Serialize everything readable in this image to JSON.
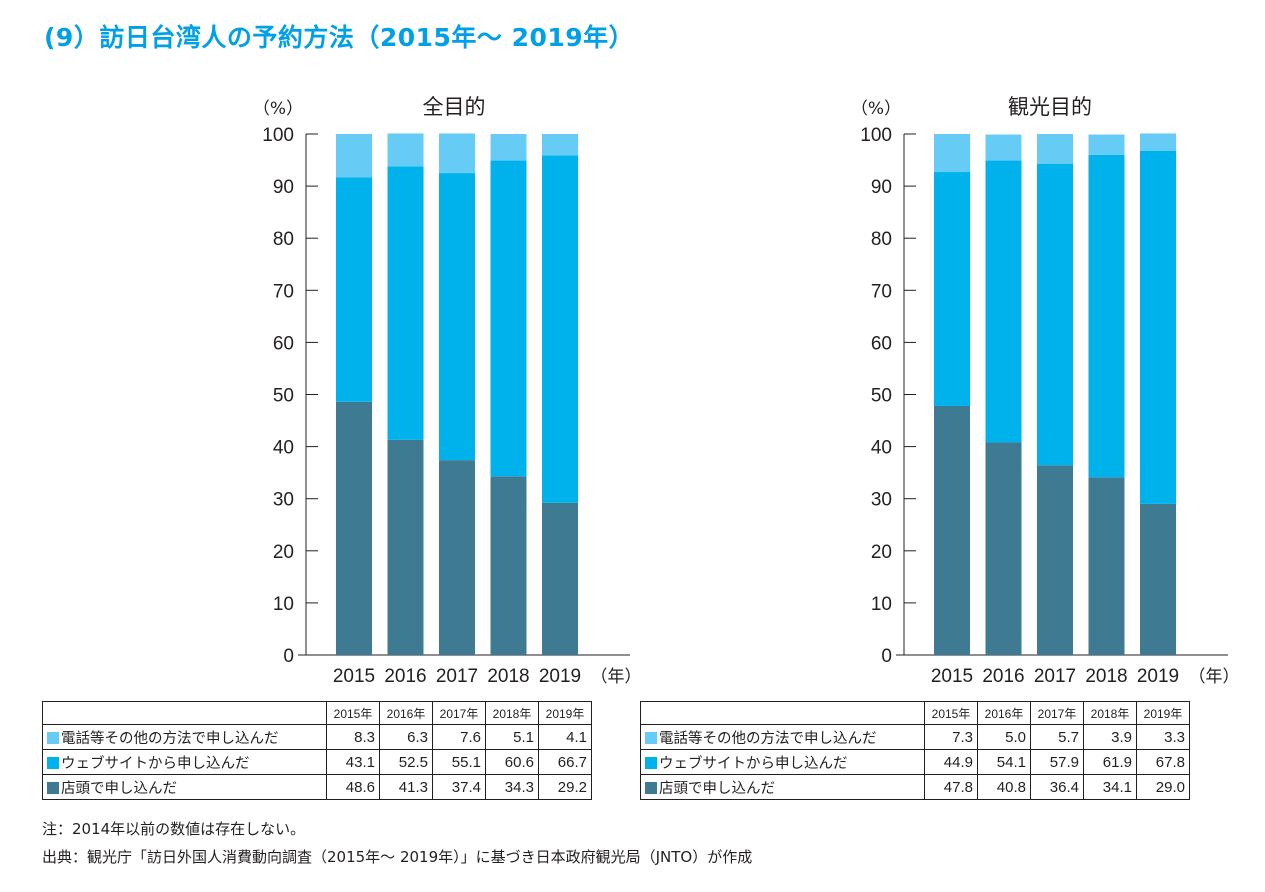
{
  "title": "(9）訪日台湾人の予約方法（2015年～ 2019年）",
  "colors": {
    "title": "#00a0e9",
    "phone": "#66ccf5",
    "web": "#00b2ec",
    "store": "#3f7a93"
  },
  "chart_data": [
    {
      "type": "bar",
      "stacked": true,
      "title": "全目的",
      "ylabel": "（%）",
      "xlabel": "（年）",
      "ylim": [
        0,
        100
      ],
      "yticks": [
        0,
        10,
        20,
        30,
        40,
        50,
        60,
        70,
        80,
        90,
        100
      ],
      "categories": [
        "2015",
        "2016",
        "2017",
        "2018",
        "2019"
      ],
      "series": [
        {
          "name": "店頭で申し込んだ",
          "key": "store",
          "values": [
            48.6,
            41.3,
            37.4,
            34.3,
            29.2
          ]
        },
        {
          "name": "ウェブサイトから申し込んだ",
          "key": "web",
          "values": [
            43.1,
            52.5,
            55.1,
            60.6,
            66.7
          ]
        },
        {
          "name": "電話等その他の方法で申し込んだ",
          "key": "phone",
          "values": [
            8.3,
            6.3,
            7.6,
            5.1,
            4.1
          ]
        }
      ]
    },
    {
      "type": "bar",
      "stacked": true,
      "title": "観光目的",
      "ylabel": "（%）",
      "xlabel": "（年）",
      "ylim": [
        0,
        100
      ],
      "yticks": [
        0,
        10,
        20,
        30,
        40,
        50,
        60,
        70,
        80,
        90,
        100
      ],
      "categories": [
        "2015",
        "2016",
        "2017",
        "2018",
        "2019"
      ],
      "series": [
        {
          "name": "店頭で申し込んだ",
          "key": "store",
          "values": [
            47.8,
            40.8,
            36.4,
            34.1,
            29.0
          ]
        },
        {
          "name": "ウェブサイトから申し込んだ",
          "key": "web",
          "values": [
            44.9,
            54.1,
            57.9,
            61.9,
            67.8
          ]
        },
        {
          "name": "電話等その他の方法で申し込んだ",
          "key": "phone",
          "values": [
            7.3,
            5.0,
            5.7,
            3.9,
            3.3
          ]
        }
      ]
    }
  ],
  "tables": [
    {
      "headers": [
        "2015年",
        "2016年",
        "2017年",
        "2018年",
        "2019年"
      ],
      "rows": [
        {
          "key": "phone",
          "label": "電話等その他の方法で申し込んだ",
          "values": [
            "8.3",
            "6.3",
            "7.6",
            "5.1",
            "4.1"
          ]
        },
        {
          "key": "web",
          "label": "ウェブサイトから申し込んだ",
          "values": [
            "43.1",
            "52.5",
            "55.1",
            "60.6",
            "66.7"
          ]
        },
        {
          "key": "store",
          "label": "店頭で申し込んだ",
          "values": [
            "48.6",
            "41.3",
            "37.4",
            "34.3",
            "29.2"
          ]
        }
      ]
    },
    {
      "headers": [
        "2015年",
        "2016年",
        "2017年",
        "2018年",
        "2019年"
      ],
      "rows": [
        {
          "key": "phone",
          "label": "電話等その他の方法で申し込んだ",
          "values": [
            "7.3",
            "5.0",
            "5.7",
            "3.9",
            "3.3"
          ]
        },
        {
          "key": "web",
          "label": "ウェブサイトから申し込んだ",
          "values": [
            "44.9",
            "54.1",
            "57.9",
            "61.9",
            "67.8"
          ]
        },
        {
          "key": "store",
          "label": "店頭で申し込んだ",
          "values": [
            "47.8",
            "40.8",
            "36.4",
            "34.1",
            "29.0"
          ]
        }
      ]
    }
  ],
  "notes": {
    "note": "注：2014年以前の数値は存在しない。",
    "source": "出典：観光庁「訪日外国人消費動向調査（2015年～ 2019年）」に基づき日本政府観光局（JNTO）が作成"
  }
}
